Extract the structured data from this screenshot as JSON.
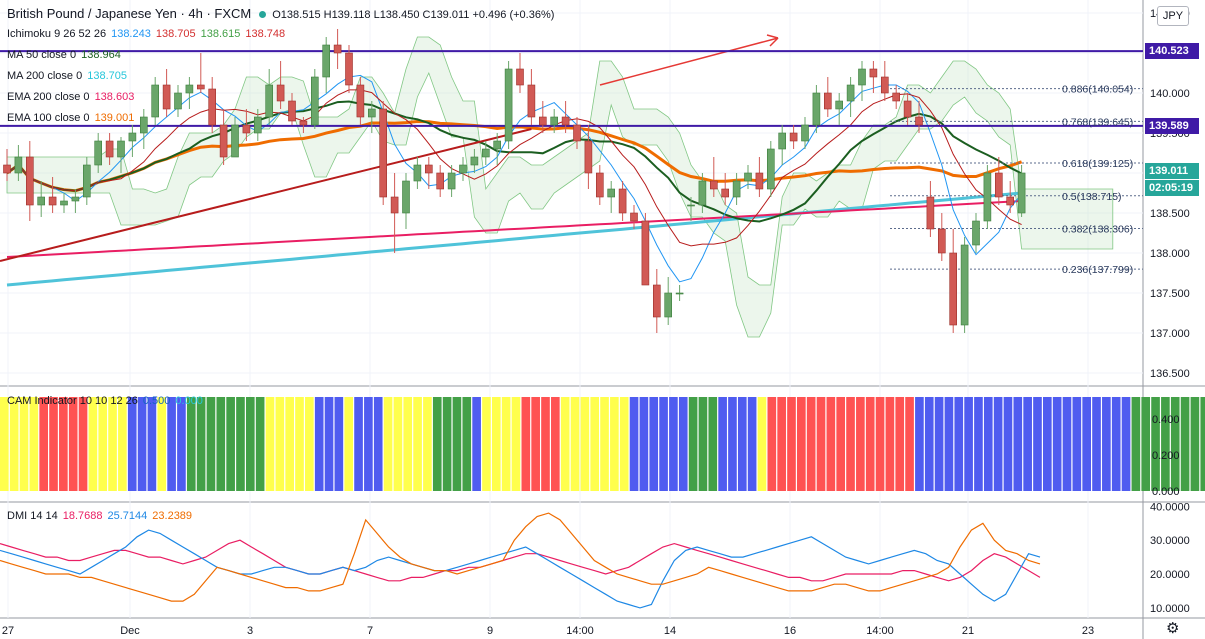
{
  "header": {
    "symbol_title": "British Pound / Japanese Yen · 4h · FXCM",
    "ohlc": "O138.515 H139.118 L138.450 C139.011 +0.496 (+0.36%)",
    "currency_button": "JPY"
  },
  "indicators_legend": [
    {
      "label": "Ichimoku 9 26 52 26",
      "values": [
        {
          "text": "138.243",
          "color": "#2196f3"
        },
        {
          "text": "138.705",
          "color": "#d32f2f"
        },
        {
          "text": "138.615",
          "color": "#43a047"
        },
        {
          "text": "138.748",
          "color": "#d32f2f"
        }
      ]
    },
    {
      "label": "MA 50 close 0",
      "values": [
        {
          "text": "138.964",
          "color": "#1b5e20"
        }
      ]
    },
    {
      "label": "MA 200 close 0",
      "values": [
        {
          "text": "138.705",
          "color": "#26c6da"
        }
      ]
    },
    {
      "label": "EMA 200 close 0",
      "values": [
        {
          "text": "138.603",
          "color": "#e91e63"
        }
      ]
    },
    {
      "label": "EMA 100 close 0",
      "values": [
        {
          "text": "139.001",
          "color": "#ef6c00"
        }
      ]
    }
  ],
  "price_tags": [
    {
      "text": "140.523",
      "color": "#3f1aa6"
    },
    {
      "text": "139.589",
      "color": "#3f1aa6"
    },
    {
      "text": "139.011",
      "color": "#26a69a"
    },
    {
      "text": "02:05:19",
      "color": "#26a69a"
    }
  ],
  "fib_labels": [
    "0.886(140.054)",
    "0.768(139.645)",
    "0.618(139.125)",
    "0.5(138.715)",
    "0.382(138.306)",
    "0.236(137.799)"
  ],
  "cam_legend": {
    "label": "CAM Indicator 10 10 12 26",
    "v1": "0.500",
    "v2": "0.000"
  },
  "dmi_legend": {
    "label": "DMI 14 14",
    "v1": "18.7688",
    "v2": "25.7144",
    "v3": "23.2389"
  },
  "colors": {
    "up": "#6aa66a",
    "down": "#d15a55",
    "resistance": "#3f1aa6",
    "ma50": "#1b5e20",
    "ma200": "#4fc3d9",
    "ema200": "#e91e63",
    "ema100": "#ef6c00",
    "ichi_tenkan": "#2196f3",
    "ichi_kijun": "#b71c1c",
    "trend": "#b71c1c",
    "cam_yellow": "#ffff4d",
    "cam_red": "#ff5252",
    "cam_blue": "#4f5cf0",
    "cam_green": "#43a047",
    "dmi_plus": "#1e88e5",
    "dmi_minus": "#ef6c00",
    "adx": "#e91e63"
  },
  "chart_data": [
    {
      "type": "candlestick",
      "title": "British Pound / Japanese Yen · 4h · FXCM",
      "price_ticks": [
        "141.000",
        "140.500",
        "140.000",
        "139.500",
        "139.000",
        "138.500",
        "138.000",
        "137.500",
        "137.000",
        "136.500"
      ],
      "time_ticks": [
        "27",
        "Dec",
        "3",
        "7",
        "9",
        "14:00",
        "14",
        "16",
        "14:00",
        "21",
        "23"
      ],
      "ylim": [
        136.4,
        141.1
      ],
      "horizontal_levels": [
        140.523,
        139.589
      ],
      "fibonacci": {
        "0.886": 140.054,
        "0.768": 139.645,
        "0.618": 139.125,
        "0.5": 138.715,
        "0.382": 138.306,
        "0.236": 137.799
      },
      "candles": [
        [
          139.1,
          139.3,
          138.9,
          139.0
        ],
        [
          139.0,
          139.35,
          138.9,
          139.2
        ],
        [
          139.2,
          139.4,
          138.4,
          138.6
        ],
        [
          138.6,
          138.9,
          138.45,
          138.7
        ],
        [
          138.7,
          138.95,
          138.5,
          138.6
        ],
        [
          138.6,
          138.75,
          138.5,
          138.65
        ],
        [
          138.65,
          138.8,
          138.5,
          138.7
        ],
        [
          138.7,
          139.2,
          138.6,
          139.1
        ],
        [
          139.1,
          139.5,
          139.0,
          139.4
        ],
        [
          139.4,
          139.5,
          139.1,
          139.2
        ],
        [
          139.2,
          139.45,
          139.0,
          139.4
        ],
        [
          139.4,
          139.6,
          139.2,
          139.5
        ],
        [
          139.5,
          139.8,
          139.3,
          139.7
        ],
        [
          139.7,
          140.2,
          139.6,
          140.1
        ],
        [
          140.1,
          140.3,
          139.7,
          139.8
        ],
        [
          139.8,
          140.1,
          139.7,
          140.0
        ],
        [
          140.0,
          140.2,
          139.8,
          140.1
        ],
        [
          140.1,
          140.5,
          140.0,
          140.05
        ],
        [
          140.05,
          140.2,
          139.5,
          139.6
        ],
        [
          139.6,
          139.8,
          139.1,
          139.2
        ],
        [
          139.2,
          139.7,
          139.2,
          139.6
        ],
        [
          139.6,
          139.8,
          139.4,
          139.5
        ],
        [
          139.5,
          139.8,
          139.4,
          139.7
        ],
        [
          139.7,
          140.3,
          139.6,
          140.1
        ],
        [
          140.1,
          140.4,
          139.8,
          139.9
        ],
        [
          139.9,
          140.0,
          139.6,
          139.65
        ],
        [
          139.65,
          139.7,
          139.5,
          139.6
        ],
        [
          139.6,
          140.3,
          139.55,
          140.2
        ],
        [
          140.2,
          140.7,
          140.0,
          140.6
        ],
        [
          140.6,
          140.8,
          140.3,
          140.5
        ],
        [
          140.5,
          140.6,
          140.0,
          140.1
        ],
        [
          140.1,
          140.2,
          139.6,
          139.7
        ],
        [
          139.7,
          139.9,
          139.5,
          139.8
        ],
        [
          139.8,
          139.9,
          138.6,
          138.7
        ],
        [
          138.7,
          139.0,
          138.0,
          138.5
        ],
        [
          138.5,
          139.0,
          138.3,
          138.9
        ],
        [
          138.9,
          139.2,
          138.8,
          139.1
        ],
        [
          139.1,
          139.2,
          138.8,
          139.0
        ],
        [
          139.0,
          139.1,
          138.7,
          138.8
        ],
        [
          138.8,
          139.1,
          138.7,
          139.0
        ],
        [
          139.0,
          139.2,
          138.9,
          139.1
        ],
        [
          139.1,
          139.3,
          139.0,
          139.2
        ],
        [
          139.2,
          139.4,
          139.1,
          139.3
        ],
        [
          139.3,
          139.5,
          139.1,
          139.4
        ],
        [
          139.4,
          140.4,
          139.3,
          140.3
        ],
        [
          140.3,
          140.5,
          140.0,
          140.1
        ],
        [
          140.1,
          140.3,
          139.6,
          139.7
        ],
        [
          139.7,
          139.9,
          139.5,
          139.6
        ],
        [
          139.6,
          139.8,
          139.5,
          139.7
        ],
        [
          139.7,
          139.9,
          139.5,
          139.6
        ],
        [
          139.6,
          139.7,
          139.3,
          139.4
        ],
        [
          139.4,
          139.6,
          138.8,
          139.0
        ],
        [
          139.0,
          139.1,
          138.6,
          138.7
        ],
        [
          138.7,
          138.9,
          138.5,
          138.8
        ],
        [
          138.8,
          138.9,
          138.4,
          138.5
        ],
        [
          138.5,
          138.6,
          138.3,
          138.4
        ],
        [
          138.4,
          138.5,
          137.6,
          137.6
        ],
        [
          137.6,
          137.8,
          137.0,
          137.2
        ],
        [
          137.2,
          137.7,
          137.1,
          137.5
        ],
        [
          137.5,
          137.6,
          137.4,
          137.5
        ],
        [
          138.6,
          138.7,
          138.4,
          138.6
        ],
        [
          138.6,
          139.0,
          138.5,
          138.9
        ],
        [
          138.9,
          139.2,
          138.7,
          138.8
        ],
        [
          138.8,
          139.0,
          138.6,
          138.7
        ],
        [
          138.7,
          139.0,
          138.6,
          138.9
        ],
        [
          138.9,
          139.1,
          138.8,
          139.0
        ],
        [
          139.0,
          139.2,
          138.7,
          138.8
        ],
        [
          138.8,
          139.4,
          138.7,
          139.3
        ],
        [
          139.3,
          139.6,
          139.1,
          139.5
        ],
        [
          139.5,
          139.6,
          139.3,
          139.4
        ],
        [
          139.4,
          139.7,
          139.3,
          139.6
        ],
        [
          139.6,
          140.1,
          139.5,
          140.0
        ],
        [
          140.0,
          140.2,
          139.7,
          139.8
        ],
        [
          139.8,
          140.0,
          139.6,
          139.9
        ],
        [
          139.9,
          140.2,
          139.7,
          140.1
        ],
        [
          140.1,
          140.4,
          139.9,
          140.3
        ],
        [
          140.3,
          140.4,
          140.0,
          140.2
        ],
        [
          140.2,
          140.4,
          139.9,
          140.0
        ],
        [
          140.0,
          140.1,
          139.8,
          139.9
        ],
        [
          139.9,
          140.0,
          139.6,
          139.7
        ],
        [
          139.7,
          139.9,
          139.5,
          139.6
        ],
        [
          138.7,
          138.9,
          138.2,
          138.3
        ],
        [
          138.3,
          138.5,
          137.9,
          138.0
        ],
        [
          138.0,
          138.3,
          137.0,
          137.1
        ],
        [
          137.1,
          138.2,
          137.0,
          138.1
        ],
        [
          138.1,
          138.5,
          138.0,
          138.4
        ],
        [
          138.4,
          139.1,
          138.3,
          139.0
        ],
        [
          139.0,
          139.2,
          138.6,
          138.7
        ],
        [
          138.7,
          138.9,
          138.5,
          138.6
        ],
        [
          138.5,
          139.1,
          138.45,
          139.0
        ]
      ]
    },
    {
      "type": "bar",
      "title": "CAM Indicator 10 10 12 26",
      "ylim": [
        0,
        0.55
      ],
      "y_ticks": [
        "0.400",
        "0.200",
        "0.000"
      ],
      "color_runs": [
        [
          "yellow",
          4
        ],
        [
          "red",
          5
        ],
        [
          "yellow",
          4
        ],
        [
          "blue",
          3
        ],
        [
          "yellow",
          1
        ],
        [
          "blue",
          2
        ],
        [
          "green",
          8
        ],
        [
          "yellow",
          5
        ],
        [
          "blue",
          3
        ],
        [
          "yellow",
          1
        ],
        [
          "blue",
          3
        ],
        [
          "yellow",
          5
        ],
        [
          "green",
          4
        ],
        [
          "blue",
          1
        ],
        [
          "yellow",
          4
        ],
        [
          "red",
          4
        ],
        [
          "yellow",
          7
        ],
        [
          "blue",
          6
        ],
        [
          "green",
          3
        ],
        [
          "blue",
          4
        ],
        [
          "yellow",
          1
        ],
        [
          "red",
          15
        ],
        [
          "blue",
          22
        ],
        [
          "green",
          9
        ],
        [
          "yellow",
          5
        ],
        [
          "red",
          6
        ],
        [
          "blue",
          6
        ]
      ]
    },
    {
      "type": "line",
      "title": "DMI 14 14",
      "ylim": [
        7,
        41
      ],
      "y_ticks": [
        "40.0000",
        "30.0000",
        "20.0000",
        "10.0000"
      ],
      "series": [
        {
          "name": "18.7688",
          "color": "#e91e63",
          "values": [
            29,
            28,
            27,
            26,
            25,
            25,
            24,
            24,
            25,
            26,
            27,
            27,
            26,
            25,
            25,
            24,
            23,
            24,
            25,
            27,
            29,
            30,
            28,
            26,
            24,
            22,
            21,
            20,
            20,
            21,
            22,
            21,
            20,
            19,
            18,
            18,
            19,
            19,
            20,
            21,
            21,
            22,
            22,
            23,
            24,
            25,
            26,
            26,
            25,
            24,
            23,
            22,
            21,
            20,
            21,
            22,
            24,
            26,
            28,
            29,
            28,
            27,
            26,
            25,
            24,
            23,
            22,
            21,
            20,
            19,
            19,
            18,
            18,
            19,
            20,
            20,
            20,
            20,
            20,
            21,
            21,
            20,
            19,
            18,
            19,
            21,
            24,
            26,
            25,
            23,
            21,
            19
          ]
        },
        {
          "name": "25.7144",
          "color": "#1e88e5",
          "values": [
            27,
            26,
            25,
            24,
            23,
            22,
            21,
            20,
            22,
            24,
            26,
            28,
            31,
            33,
            32,
            30,
            28,
            26,
            24,
            22,
            21,
            20,
            20,
            21,
            22,
            22,
            21,
            20,
            20,
            21,
            22,
            21,
            22,
            24,
            25,
            24,
            23,
            22,
            21,
            21,
            22,
            23,
            24,
            25,
            26,
            27,
            28,
            26,
            24,
            22,
            20,
            18,
            16,
            14,
            12,
            11,
            10,
            11,
            18,
            24,
            27,
            28,
            27,
            26,
            25,
            25,
            26,
            27,
            28,
            29,
            30,
            31,
            29,
            27,
            25,
            24,
            23,
            24,
            25,
            26,
            27,
            26,
            24,
            23,
            20,
            17,
            14,
            12,
            14,
            20,
            26,
            25
          ]
        },
        {
          "name": "23.2389",
          "color": "#ef6c00",
          "values": [
            24,
            23,
            22,
            21,
            20,
            20,
            20,
            19,
            19,
            18,
            17,
            16,
            15,
            14,
            13,
            12,
            12,
            14,
            18,
            22,
            21,
            20,
            19,
            18,
            17,
            16,
            16,
            15,
            15,
            16,
            17,
            26,
            36,
            32,
            28,
            25,
            23,
            22,
            21,
            21,
            20,
            21,
            22,
            23,
            24,
            30,
            34,
            37,
            38,
            36,
            32,
            28,
            24,
            22,
            20,
            19,
            18,
            17,
            17,
            18,
            19,
            20,
            22,
            21,
            20,
            19,
            18,
            17,
            16,
            15,
            15,
            15,
            16,
            17,
            17,
            16,
            15,
            15,
            16,
            17,
            18,
            19,
            20,
            22,
            28,
            33,
            35,
            30,
            27,
            26,
            24,
            23
          ]
        }
      ]
    }
  ]
}
